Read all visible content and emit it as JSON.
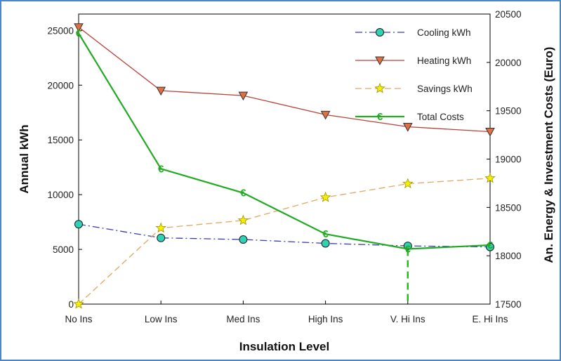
{
  "chart_data": {
    "type": "line",
    "categories": [
      "No Ins",
      "Low Ins",
      "Med Ins",
      "High Ins",
      "V. Hi Ins",
      "E. Hi Ins"
    ],
    "xlabel": "Insulation Level",
    "ylabel": "Annual kWh",
    "y2label": "An. Energy & Investment Costs (Euro)",
    "ylim": [
      0,
      26500
    ],
    "yticks": [
      0,
      5000,
      10000,
      15000,
      20000,
      25000
    ],
    "y2lim": [
      17500,
      20500
    ],
    "y2ticks": [
      17500,
      18000,
      18500,
      19000,
      19500,
      20000,
      20500
    ],
    "legend_position": "top-right",
    "series": [
      {
        "name": "Cooling kWh",
        "axis": "left",
        "values": [
          7300,
          6050,
          5900,
          5550,
          5320,
          5220
        ],
        "color": "#3b3bb5",
        "marker": "circle",
        "marker_fill": "#2ed3b5",
        "dash": "dashdot"
      },
      {
        "name": "Heating kWh",
        "axis": "left",
        "values": [
          25300,
          19500,
          19050,
          17300,
          16200,
          15750
        ],
        "color": "#b8403a",
        "marker": "triangle-down",
        "marker_fill": "#e07040",
        "dash": "solid"
      },
      {
        "name": "Savings kWh",
        "axis": "left",
        "values": [
          0,
          6950,
          7650,
          9750,
          11000,
          11500
        ],
        "color": "#e0a860",
        "marker": "star",
        "marker_fill": "#f5f000",
        "dash": "dashed"
      },
      {
        "name": "Total Costs",
        "axis": "right",
        "values": [
          20300,
          18900,
          18650,
          18225,
          18070,
          18110
        ],
        "color": "#22aa22",
        "marker": "euro",
        "dash": "solid"
      }
    ],
    "annotation": {
      "type": "vertical-dashed-line",
      "category": "V. Hi Ins",
      "color": "#22bb22"
    }
  }
}
